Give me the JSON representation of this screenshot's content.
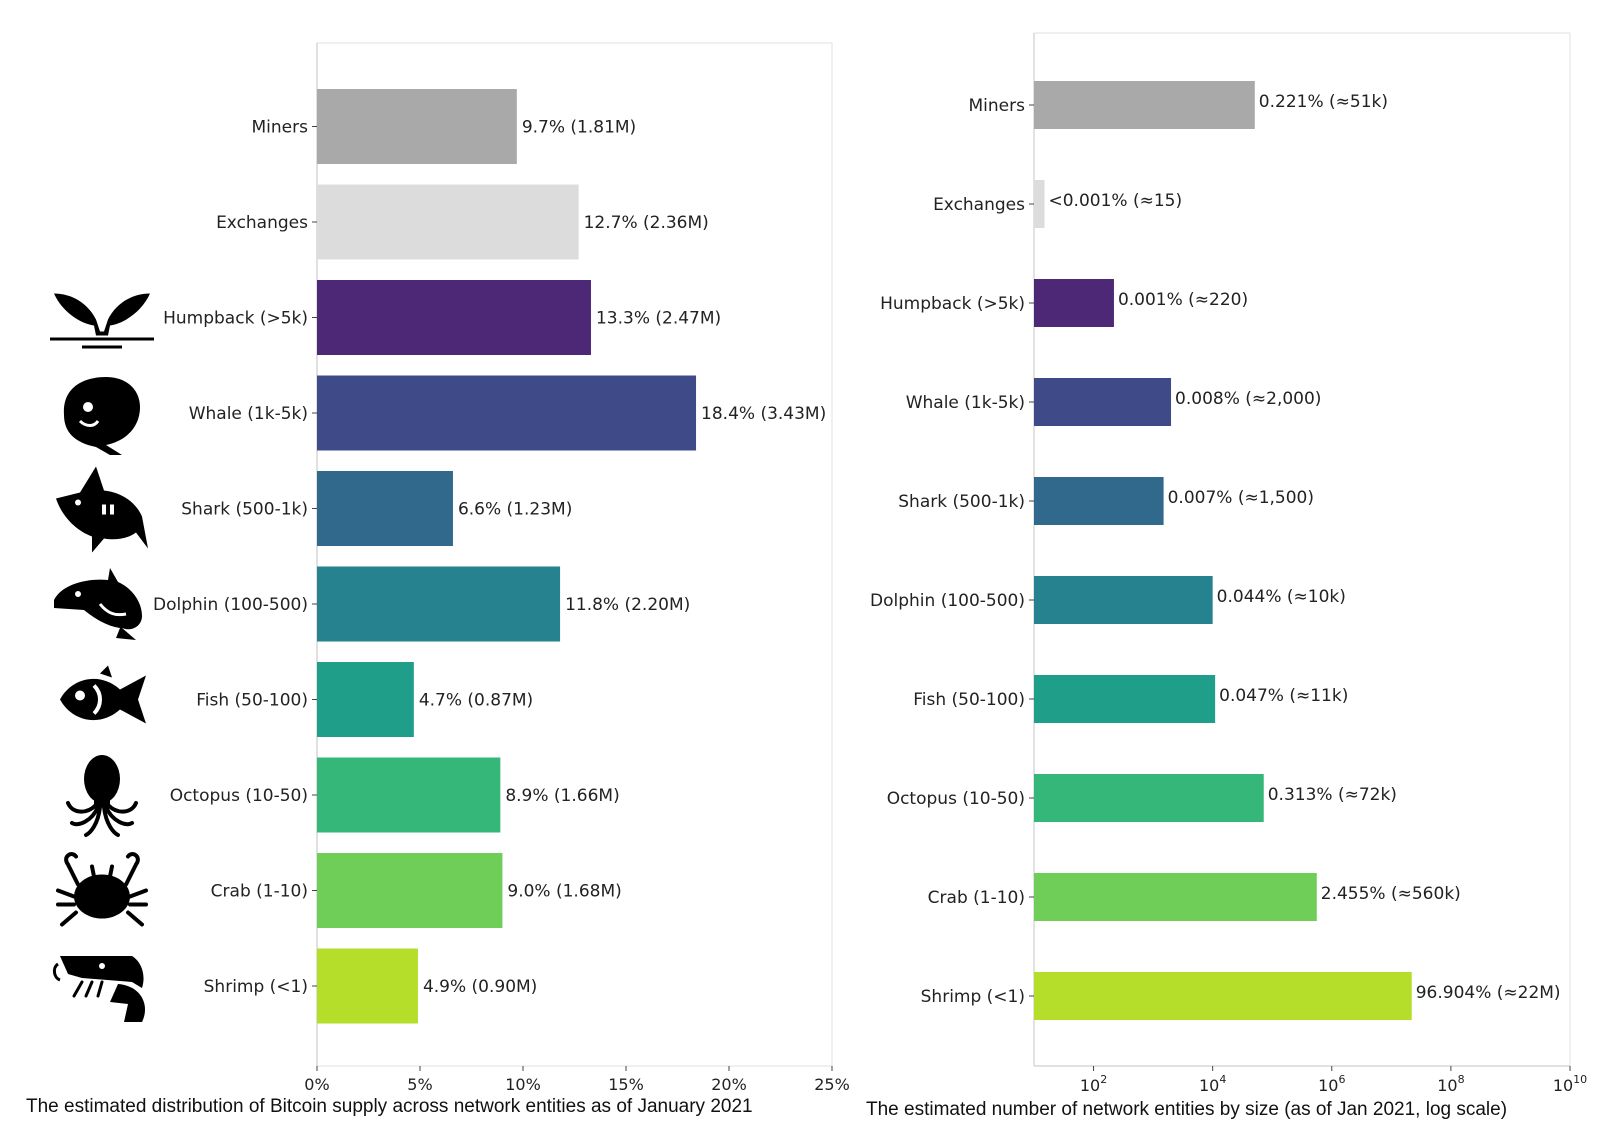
{
  "chart_data": [
    {
      "type": "bar",
      "orientation": "horizontal",
      "categories": [
        "Miners",
        "Exchanges",
        "Humpback (>5k)",
        "Whale (1k-5k)",
        "Shark (500-1k)",
        "Dolphin (100-500)",
        "Fish (50-100)",
        "Octopus (10-50)",
        "Crab (1-10)",
        "Shrimp (<1)"
      ],
      "values": [
        9.7,
        12.7,
        13.3,
        18.4,
        6.6,
        11.8,
        4.7,
        8.9,
        9.0,
        4.9
      ],
      "data_labels": [
        "9.7% (1.81M)",
        "12.7% (2.36M)",
        "13.3% (2.47M)",
        "18.4% (3.43M)",
        "6.6% (1.23M)",
        "11.8% (2.20M)",
        "4.7% (0.87M)",
        "8.9% (1.66M)",
        "9.0% (1.68M)",
        "4.9% (0.90M)"
      ],
      "colors": [
        "#a9a9a9",
        "#dcdcdc",
        "#4c2877",
        "#3f4a89",
        "#31698d",
        "#26828e",
        "#1f9e89",
        "#35b779",
        "#6ece58",
        "#b5de2b"
      ],
      "icons": [
        "",
        "",
        "humpback-tail-icon",
        "whale-icon",
        "shark-icon",
        "dolphin-icon",
        "fish-icon",
        "octopus-icon",
        "crab-icon",
        "shrimp-icon"
      ],
      "xlim": [
        0,
        25
      ],
      "xticks": [
        0,
        5,
        10,
        15,
        20,
        25
      ],
      "xtick_labels": [
        "0%",
        "5%",
        "10%",
        "15%",
        "20%",
        "25%"
      ],
      "caption": "The estimated distribution of Bitcoin supply across network entities as of January 2021",
      "grid": false
    },
    {
      "type": "bar",
      "orientation": "horizontal",
      "x_scale": "log",
      "categories": [
        "Miners",
        "Exchanges",
        "Humpback (>5k)",
        "Whale (1k-5k)",
        "Shark (500-1k)",
        "Dolphin (100-500)",
        "Fish (50-100)",
        "Octopus (10-50)",
        "Crab (1-10)",
        "Shrimp (<1)"
      ],
      "values": [
        51000,
        15,
        220,
        2000,
        1500,
        10000,
        11000,
        72000,
        560000,
        22000000
      ],
      "data_labels": [
        "0.221% (≈51k)",
        "<0.001% (≈15)",
        "0.001% (≈220)",
        "0.008% (≈2,000)",
        "0.007% (≈1,500)",
        "0.044% (≈10k)",
        "0.047% (≈11k)",
        "0.313% (≈72k)",
        "2.455% (≈560k)",
        "96.904% (≈22M)"
      ],
      "colors": [
        "#a9a9a9",
        "#dcdcdc",
        "#4c2877",
        "#3f4a89",
        "#31698d",
        "#26828e",
        "#1f9e89",
        "#35b779",
        "#6ece58",
        "#b5de2b"
      ],
      "xlim": [
        10,
        10000000000
      ],
      "xticks": [
        100,
        10000,
        1000000,
        100000000,
        10000000000
      ],
      "xtick_labels": [
        {
          "base": "10",
          "exp": "2"
        },
        {
          "base": "10",
          "exp": "4"
        },
        {
          "base": "10",
          "exp": "6"
        },
        {
          "base": "10",
          "exp": "8"
        },
        {
          "base": "10",
          "exp": "10"
        }
      ],
      "caption": "The estimated number of network entities by size (as of Jan 2021, log scale)",
      "grid": false
    }
  ]
}
